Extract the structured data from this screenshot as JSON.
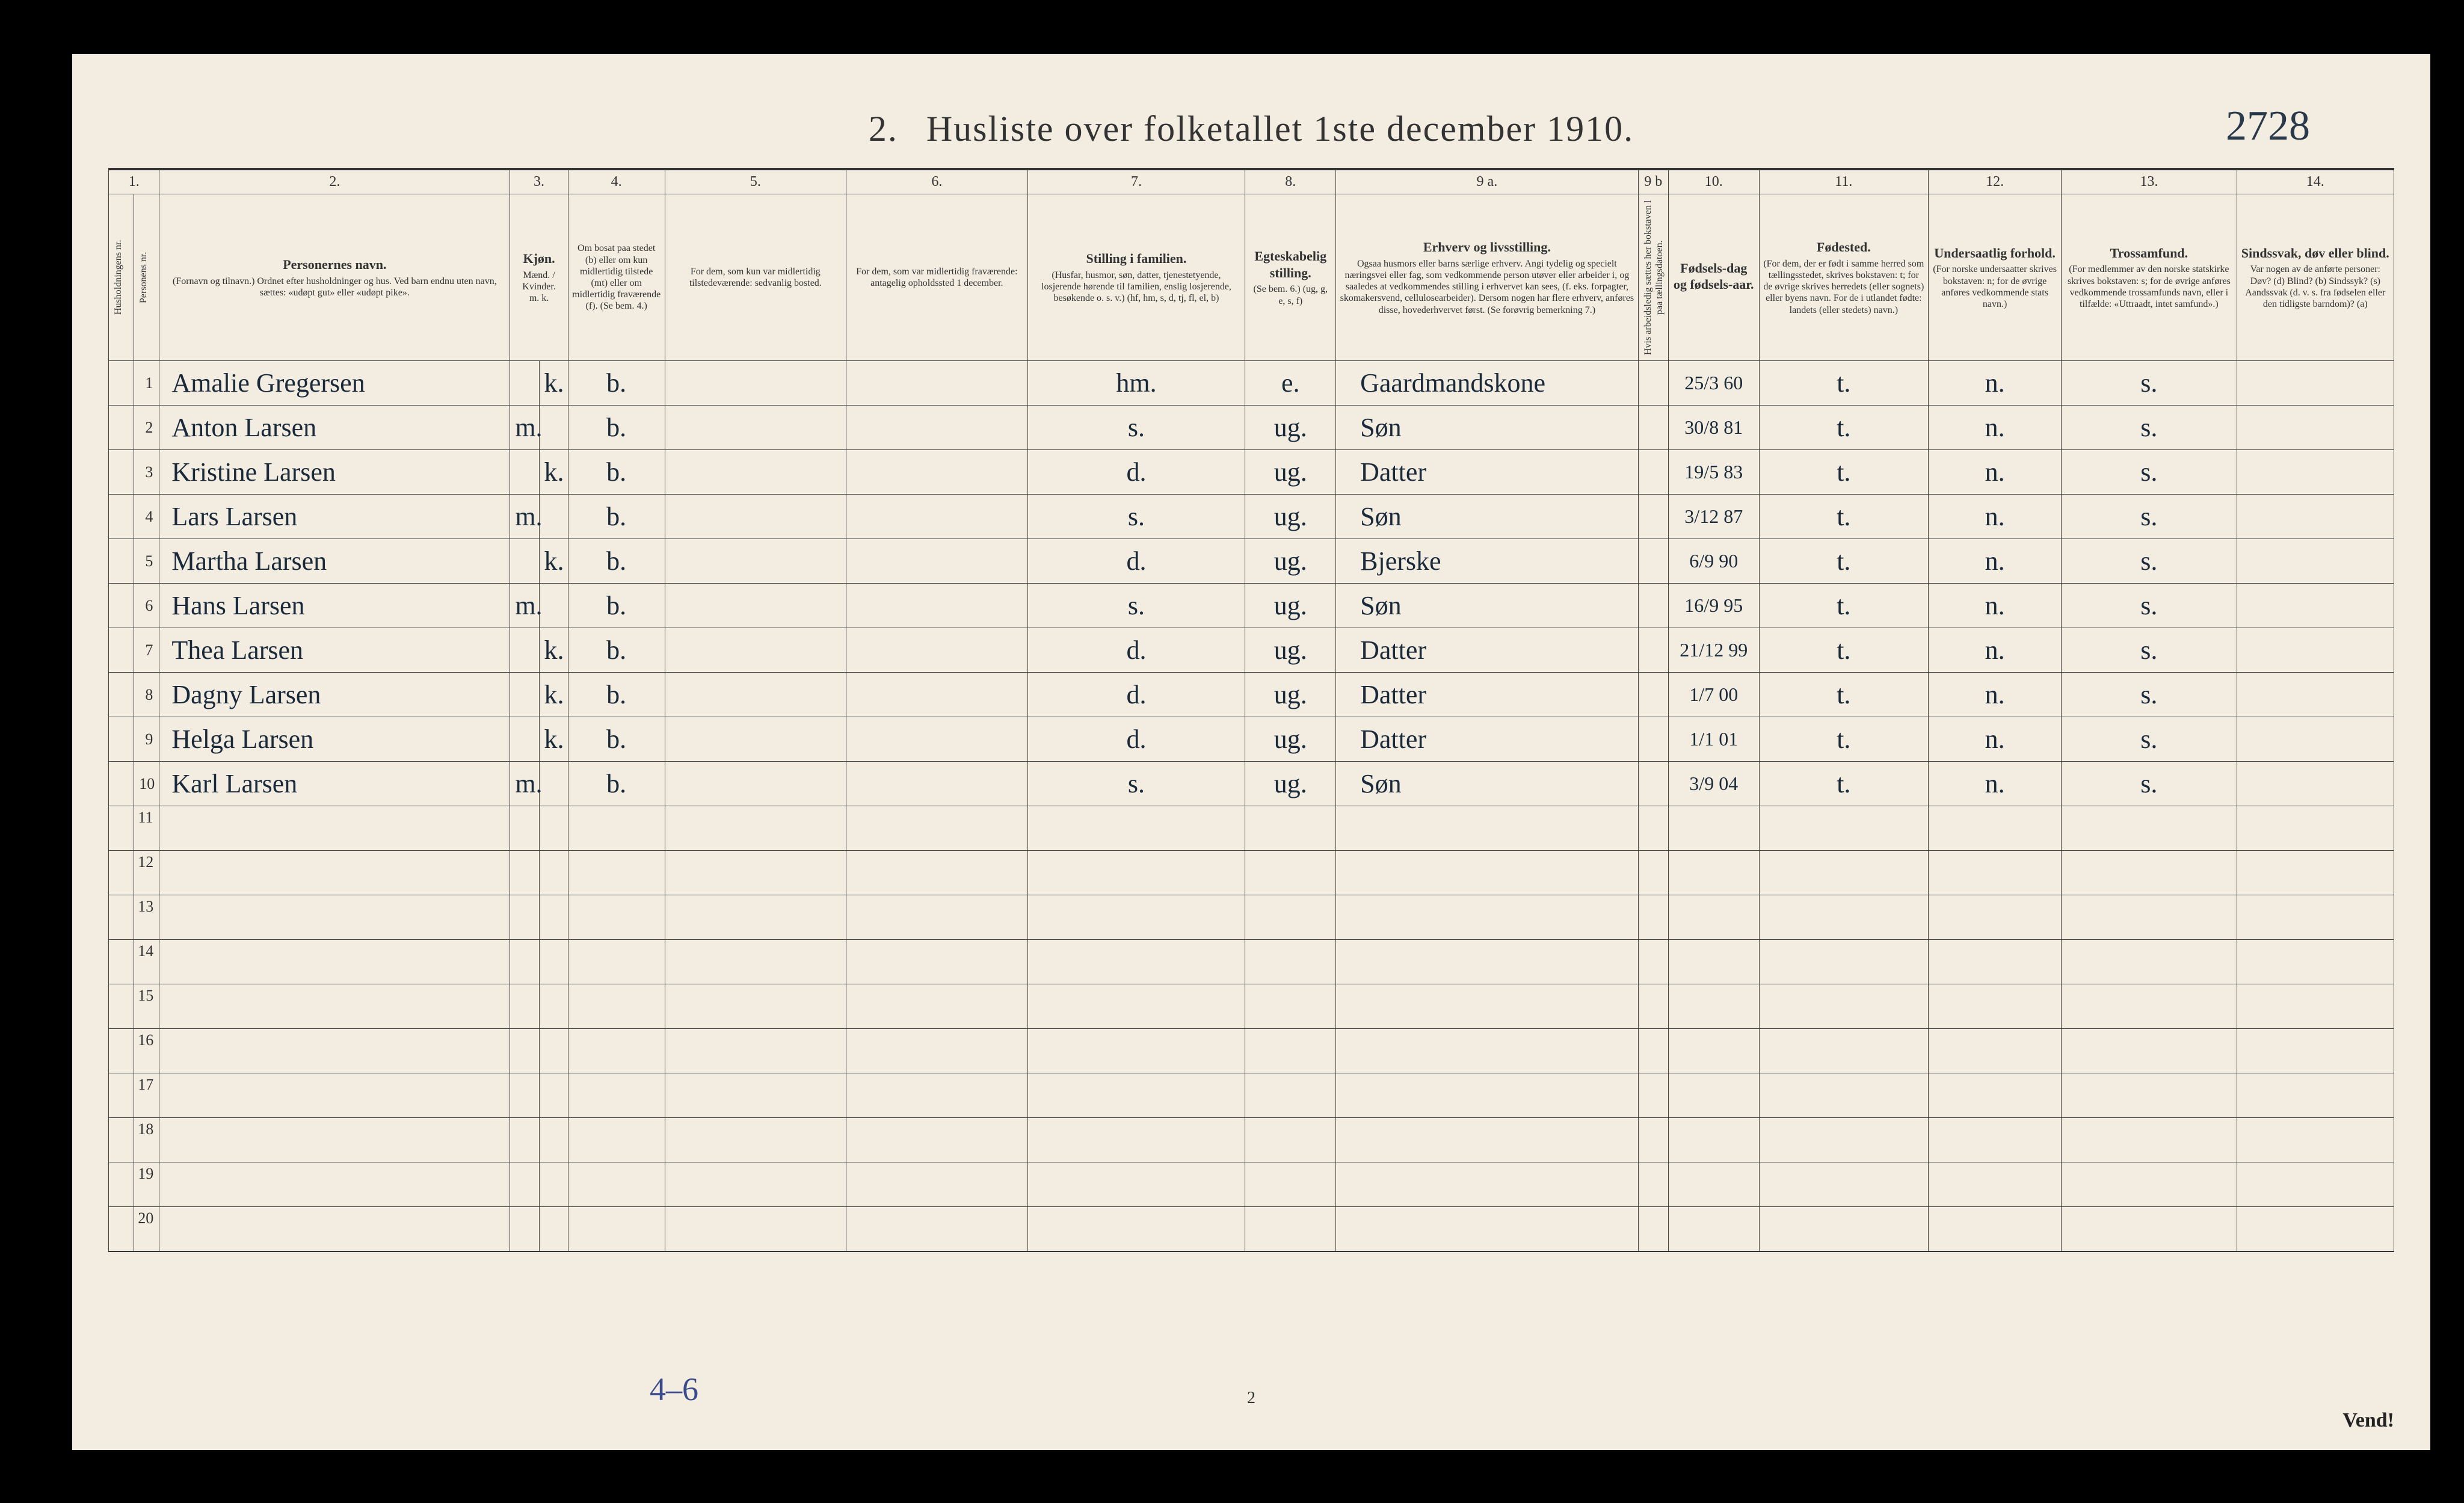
{
  "document": {
    "handwritten_number": "2728",
    "title_prefix": "2.",
    "title": "Husliste over folketallet 1ste december 1910.",
    "bottom_annotation": "4–6",
    "page_number_bottom": "2",
    "turn_over": "Vend!"
  },
  "colors": {
    "page_bg": "#f2ede0",
    "frame_bg": "#000000",
    "rule": "#444444",
    "print_text": "#333333",
    "handwriting": "#1b2a3a",
    "blue_pencil": "#3a4a8a"
  },
  "column_numbers": [
    "1.",
    "2.",
    "3.",
    "4.",
    "5.",
    "6.",
    "7.",
    "8.",
    "9 a.",
    "9 b",
    "10.",
    "11.",
    "12.",
    "13.",
    "14."
  ],
  "headers": {
    "c1a": "Husholdningens nr.",
    "c1b": "Personens nr.",
    "c2_strong": "Personernes navn.",
    "c2_sub": "(Fornavn og tilnavn.)\nOrdnet efter husholdninger og hus.\nVed barn endnu uten navn, sættes: «udøpt gut» eller «udøpt pike».",
    "c3_strong": "Kjøn.",
    "c3_sub": "Mænd. / Kvinder.",
    "c3_mk": "m.   k.",
    "c4": "Om bosat paa stedet (b) eller om kun midlertidig tilstede (mt) eller om midlertidig fraværende (f). (Se bem. 4.)",
    "c5": "For dem, som kun var midlertidig tilstedeværende:\nsedvanlig bosted.",
    "c6": "For dem, som var midlertidig fraværende:\nantagelig opholdssted 1 december.",
    "c7_strong": "Stilling i familien.",
    "c7_sub": "(Husfar, husmor, søn, datter, tjenestetyende, losjerende hørende til familien, enslig losjerende, besøkende o. s. v.)\n(hf, hm, s, d, tj, fl, el, b)",
    "c8_strong": "Egteskabelig stilling.",
    "c8_sub": "(Se bem. 6.)\n(ug, g, e, s, f)",
    "c9a_strong": "Erhverv og livsstilling.",
    "c9a_sub": "Ogsaa husmors eller barns særlige erhverv. Angi tydelig og specielt næringsvei eller fag, som vedkommende person utøver eller arbeider i, og saaledes at vedkommendes stilling i erhvervet kan sees, (f. eks. forpagter, skomakersvend, cellulosearbeider). Dersom nogen har flere erhverv, anføres disse, hovederhvervet først. (Se forøvrig bemerkning 7.)",
    "c9b": "Hvis arbeidsledig sættes her bokstaven l paa tællingsdatoen.",
    "c10_strong": "Fødsels-dag og fødsels-aar.",
    "c11_strong": "Fødested.",
    "c11_sub": "(For dem, der er født i samme herred som tællingsstedet, skrives bokstaven: t; for de øvrige skrives herredets (eller sognets) eller byens navn. For de i utlandet fødte: landets (eller stedets) navn.)",
    "c12_strong": "Undersaatlig forhold.",
    "c12_sub": "(For norske undersaatter skrives bokstaven: n; for de øvrige anføres vedkommende stats navn.)",
    "c13_strong": "Trossamfund.",
    "c13_sub": "(For medlemmer av den norske statskirke skrives bokstaven: s; for de øvrige anføres vedkommende trossamfunds navn, eller i tilfælde: «Uttraadt, intet samfund».)",
    "c14_strong": "Sindssvak, døv eller blind.",
    "c14_sub": "Var nogen av de anførte personer:\nDøv? (d)\nBlind? (b)\nSindssyk? (s)\nAandssvak (d. v. s. fra fødselen eller den tidligste barndom)? (a)"
  },
  "rows": [
    {
      "n": "1",
      "name": "Amalie Gregersen",
      "m": "",
      "k": "k.",
      "res": "b.",
      "fam": "hm.",
      "mar": "e.",
      "occ": "Gaardmandskone",
      "dob": "25/3 60",
      "born": "t.",
      "nat": "n.",
      "rel": "s."
    },
    {
      "n": "2",
      "name": "Anton Larsen",
      "m": "m.",
      "k": "",
      "res": "b.",
      "fam": "s.",
      "mar": "ug.",
      "occ": "Søn",
      "dob": "30/8 81",
      "born": "t.",
      "nat": "n.",
      "rel": "s."
    },
    {
      "n": "3",
      "name": "Kristine Larsen",
      "m": "",
      "k": "k.",
      "res": "b.",
      "fam": "d.",
      "mar": "ug.",
      "occ": "Datter",
      "dob": "19/5 83",
      "born": "t.",
      "nat": "n.",
      "rel": "s."
    },
    {
      "n": "4",
      "name": "Lars Larsen",
      "m": "m.",
      "k": "",
      "res": "b.",
      "fam": "s.",
      "mar": "ug.",
      "occ": "Søn",
      "dob": "3/12 87",
      "born": "t.",
      "nat": "n.",
      "rel": "s."
    },
    {
      "n": "5",
      "name": "Martha Larsen",
      "m": "",
      "k": "k.",
      "res": "b.",
      "fam": "d.",
      "mar": "ug.",
      "occ": "Bjerske",
      "dob": "6/9 90",
      "born": "t.",
      "nat": "n.",
      "rel": "s."
    },
    {
      "n": "6",
      "name": "Hans Larsen",
      "m": "m.",
      "k": "",
      "res": "b.",
      "fam": "s.",
      "mar": "ug.",
      "occ": "Søn",
      "dob": "16/9 95",
      "born": "t.",
      "nat": "n.",
      "rel": "s."
    },
    {
      "n": "7",
      "name": "Thea Larsen",
      "m": "",
      "k": "k.",
      "res": "b.",
      "fam": "d.",
      "mar": "ug.",
      "occ": "Datter",
      "dob": "21/12 99",
      "born": "t.",
      "nat": "n.",
      "rel": "s."
    },
    {
      "n": "8",
      "name": "Dagny Larsen",
      "m": "",
      "k": "k.",
      "res": "b.",
      "fam": "d.",
      "mar": "ug.",
      "occ": "Datter",
      "dob": "1/7 00",
      "born": "t.",
      "nat": "n.",
      "rel": "s."
    },
    {
      "n": "9",
      "name": "Helga Larsen",
      "m": "",
      "k": "k.",
      "res": "b.",
      "fam": "d.",
      "mar": "ug.",
      "occ": "Datter",
      "dob": "1/1 01",
      "born": "t.",
      "nat": "n.",
      "rel": "s."
    },
    {
      "n": "10",
      "name": "Karl Larsen",
      "m": "m.",
      "k": "",
      "res": "b.",
      "fam": "s.",
      "mar": "ug.",
      "occ": "Søn",
      "dob": "3/9 04",
      "born": "t.",
      "nat": "n.",
      "rel": "s."
    }
  ],
  "empty_rows": [
    "11",
    "12",
    "13",
    "14",
    "15",
    "16",
    "17",
    "18",
    "19",
    "20"
  ]
}
